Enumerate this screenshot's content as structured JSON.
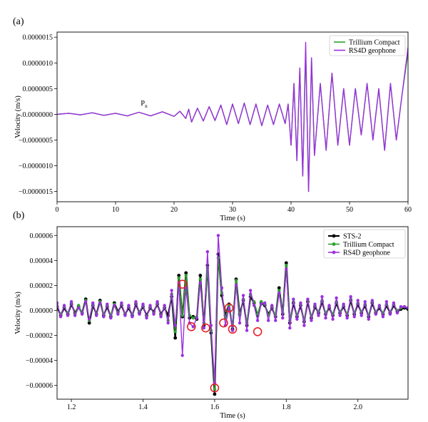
{
  "chart_data": [
    {
      "type": "line",
      "panel_label": "(a)",
      "xlabel": "Time (s)",
      "ylabel": "Velocity (m/s)",
      "xlim": [
        0,
        60
      ],
      "ylim": [
        -1.7e-06,
        1.6e-06
      ],
      "xticks": [
        0,
        10,
        20,
        30,
        40,
        50,
        60
      ],
      "xtick_labels": [
        "0",
        "10",
        "20",
        "30",
        "40",
        "50",
        "60"
      ],
      "yticks": [
        1.5e-06,
        1e-06,
        5e-07,
        0.0,
        -5e-07,
        -1e-06,
        -1.5e-06
      ],
      "ytick_labels": [
        "0.0000015",
        "0.0000010",
        "0.0000005",
        "0.0000000",
        "−0.0000005",
        "−0.0000010",
        "−0.0000015"
      ],
      "annotation": {
        "text": "P",
        "subscript": "n",
        "x": 14.3,
        "y": 9e-08
      },
      "legend": {
        "placement": "top-right",
        "entries": [
          "Trillium Compact",
          "RS4D geophone"
        ]
      },
      "series": [
        {
          "name": "Trillium Compact",
          "color": "#2ca02c",
          "x": [
            0,
            2,
            4,
            6,
            8,
            10,
            12,
            14,
            16,
            18,
            20,
            21,
            22,
            22.5,
            23,
            24,
            25,
            26,
            27,
            28,
            29,
            30,
            31,
            32,
            33,
            34,
            35,
            36,
            37,
            38,
            39,
            39.5,
            40,
            40.5,
            41,
            41.5,
            42,
            42.5,
            43,
            43.5,
            44,
            45,
            46,
            47,
            48,
            49,
            50,
            51,
            52,
            53,
            54,
            55,
            56,
            57,
            58,
            59,
            60
          ],
          "y": [
            0,
            2e-08,
            -1e-08,
            3e-08,
            -2e-08,
            2e-08,
            -3e-08,
            4e-08,
            -3e-08,
            5e-08,
            -4e-08,
            6e-08,
            -8e-08,
            1e-07,
            -1.5e-07,
            1.2e-07,
            -1.3e-07,
            1.5e-07,
            -1.2e-07,
            1.8e-07,
            -2e-07,
            2e-07,
            -1.8e-07,
            2.2e-07,
            -2e-07,
            2e-07,
            -2.2e-07,
            1.8e-07,
            -2e-07,
            2e-07,
            -1.8e-07,
            2e-07,
            -6e-07,
            6e-07,
            -9e-07,
            9e-07,
            -1.2e-06,
            1.2e-06,
            -1.5e-06,
            1.1e-06,
            -8e-07,
            6e-07,
            -7e-07,
            8e-07,
            -6e-07,
            5e-07,
            -6e-07,
            5e-07,
            -4e-07,
            6e-07,
            -5e-07,
            5e-07,
            -7e-07,
            6e-07,
            -5e-07,
            4e-07,
            1.2e-06
          ]
        },
        {
          "name": "RS4D geophone",
          "color": "#9b30e0",
          "x": [
            0,
            2,
            4,
            6,
            8,
            10,
            12,
            14,
            16,
            18,
            20,
            21,
            22,
            22.5,
            23,
            24,
            25,
            26,
            27,
            28,
            29,
            30,
            31,
            32,
            33,
            34,
            35,
            36,
            37,
            38,
            39,
            39.5,
            40,
            40.5,
            41,
            41.5,
            42,
            42.5,
            43,
            43.5,
            44,
            45,
            46,
            47,
            48,
            49,
            50,
            51,
            52,
            53,
            54,
            55,
            56,
            57,
            58,
            59,
            60
          ],
          "y": [
            0,
            2e-08,
            -1e-08,
            3e-08,
            -2e-08,
            2e-08,
            -3e-08,
            4e-08,
            -3e-08,
            5e-08,
            -4e-08,
            6e-08,
            -8e-08,
            1e-07,
            -1.5e-07,
            1.2e-07,
            -1.3e-07,
            1.5e-07,
            -1.2e-07,
            1.8e-07,
            -2e-07,
            2e-07,
            -1.8e-07,
            2.2e-07,
            -2e-07,
            2e-07,
            -2.2e-07,
            1.8e-07,
            -2e-07,
            2e-07,
            -1.8e-07,
            2e-07,
            -6e-07,
            6e-07,
            -9e-07,
            9e-07,
            -1.2e-06,
            1.4e-06,
            -1.5e-06,
            1.1e-06,
            -8e-07,
            6e-07,
            -7e-07,
            8e-07,
            -6e-07,
            5e-07,
            -6e-07,
            5e-07,
            -4e-07,
            6e-07,
            -5e-07,
            5e-07,
            -7e-07,
            6e-07,
            -5e-07,
            4e-07,
            1.3e-06
          ]
        }
      ]
    },
    {
      "type": "line",
      "panel_label": "(b)",
      "xlabel": "Time (s)",
      "ylabel": "Velocity (m/s)",
      "xlim": [
        1.16,
        2.14
      ],
      "ylim": [
        -7.1e-05,
        6.7e-05
      ],
      "xticks": [
        1.2,
        1.4,
        1.6,
        1.8,
        2.0
      ],
      "xtick_labels": [
        "1.2",
        "1.4",
        "1.6",
        "1.8",
        "2.0"
      ],
      "yticks": [
        6e-05,
        4e-05,
        2e-05,
        0.0,
        -2e-05,
        -4e-05,
        -6e-05
      ],
      "ytick_labels": [
        "0.00006",
        "0.00004",
        "0.00002",
        "0.00000",
        "−0.00002",
        "−0.00004",
        "−0.00006"
      ],
      "legend": {
        "placement": "top-right",
        "entries": [
          "STS-2",
          "Trillium Compact",
          "RS4D geophone"
        ]
      },
      "highlighted_points": [
        {
          "x": 1.51,
          "y": 2.1e-05
        },
        {
          "x": 1.535,
          "y": -1.3e-05
        },
        {
          "x": 1.575,
          "y": -1.4e-05
        },
        {
          "x": 1.625,
          "y": -1e-05
        },
        {
          "x": 1.64,
          "y": 2e-06
        },
        {
          "x": 1.65,
          "y": -1.5e-05
        },
        {
          "x": 1.72,
          "y": -1.7e-05
        },
        {
          "x": 1.6,
          "y": -6.2e-05
        }
      ],
      "series": [
        {
          "name": "STS-2",
          "color": "#000000",
          "x": [
            1.16,
            1.17,
            1.18,
            1.19,
            1.2,
            1.21,
            1.22,
            1.23,
            1.24,
            1.25,
            1.26,
            1.27,
            1.28,
            1.29,
            1.3,
            1.31,
            1.32,
            1.33,
            1.34,
            1.35,
            1.36,
            1.37,
            1.38,
            1.39,
            1.4,
            1.41,
            1.42,
            1.43,
            1.44,
            1.45,
            1.46,
            1.47,
            1.48,
            1.49,
            1.5,
            1.51,
            1.52,
            1.53,
            1.54,
            1.55,
            1.56,
            1.57,
            1.58,
            1.59,
            1.6,
            1.61,
            1.62,
            1.63,
            1.64,
            1.65,
            1.66,
            1.67,
            1.68,
            1.69,
            1.7,
            1.71,
            1.72,
            1.73,
            1.74,
            1.75,
            1.76,
            1.77,
            1.78,
            1.79,
            1.8,
            1.81,
            1.82,
            1.83,
            1.84,
            1.85,
            1.86,
            1.87,
            1.88,
            1.89,
            1.9,
            1.91,
            1.92,
            1.93,
            1.94,
            1.95,
            1.96,
            1.97,
            1.98,
            1.99,
            2.0,
            2.01,
            2.02,
            2.03,
            2.04,
            2.05,
            2.06,
            2.07,
            2.08,
            2.09,
            2.1,
            2.11,
            2.12,
            2.13,
            2.14
          ],
          "y": [
            3e-06,
            -4e-06,
            2e-06,
            -3e-06,
            5e-06,
            -2e-06,
            3e-06,
            -2e-06,
            9e-06,
            -1e-05,
            4e-06,
            -3e-06,
            8e-06,
            -4e-06,
            3e-06,
            -5e-06,
            6e-06,
            -1e-06,
            4e-06,
            -3e-06,
            2e-06,
            -4e-06,
            5e-06,
            -2e-06,
            3e-06,
            -4e-06,
            2e-06,
            -1e-06,
            5e-06,
            -3e-06,
            2e-06,
            -4e-06,
            1.1e-05,
            -2.2e-05,
            2.8e-05,
            -5e-06,
            3e-05,
            -6e-06,
            -5e-06,
            -7e-06,
            2.8e-05,
            -1.2e-05,
            3.6e-05,
            -1.8e-05,
            -6.7e-05,
            4.5e-05,
            1.2e-05,
            -4e-06,
            5e-06,
            -1.5e-05,
            2.5e-05,
            -3e-06,
            8e-06,
            -1.2e-05,
            1.1e-05,
            6e-06,
            -4e-06,
            6e-06,
            4e-06,
            -3e-06,
            2e-06,
            -5e-06,
            1.8e-05,
            -3e-06,
            3.8e-05,
            -1e-05,
            6e-06,
            -5e-06,
            4e-06,
            -9e-06,
            7e-06,
            -6e-06,
            3e-06,
            -2e-06,
            7e-06,
            -3e-06,
            2e-06,
            -4e-06,
            6e-06,
            -2e-06,
            3e-06,
            -4e-06,
            8e-06,
            -3e-06,
            5e-06,
            -2e-06,
            4e-06,
            -5e-06,
            6e-06,
            -2e-06,
            2e-06,
            -3e-06,
            4e-06,
            -2e-06,
            4e-06,
            -1e-06,
            1e-06,
            2e-06,
            1e-06
          ]
        },
        {
          "name": "Trillium Compact",
          "color": "#2ca02c",
          "x": [
            1.16,
            1.17,
            1.18,
            1.19,
            1.2,
            1.21,
            1.22,
            1.23,
            1.24,
            1.25,
            1.26,
            1.27,
            1.28,
            1.29,
            1.3,
            1.31,
            1.32,
            1.33,
            1.34,
            1.35,
            1.36,
            1.37,
            1.38,
            1.39,
            1.4,
            1.41,
            1.42,
            1.43,
            1.44,
            1.45,
            1.46,
            1.47,
            1.48,
            1.49,
            1.5,
            1.51,
            1.52,
            1.53,
            1.54,
            1.55,
            1.56,
            1.57,
            1.58,
            1.59,
            1.6,
            1.61,
            1.62,
            1.63,
            1.64,
            1.65,
            1.66,
            1.67,
            1.68,
            1.69,
            1.7,
            1.71,
            1.72,
            1.73,
            1.74,
            1.75,
            1.76,
            1.77,
            1.78,
            1.79,
            1.8,
            1.81,
            1.82,
            1.83,
            1.84,
            1.85,
            1.86,
            1.87,
            1.88,
            1.89,
            1.9,
            1.91,
            1.92,
            1.93,
            1.94,
            1.95,
            1.96,
            1.97,
            1.98,
            1.99,
            2.0,
            2.01,
            2.02,
            2.03,
            2.04,
            2.05,
            2.06,
            2.07,
            2.08,
            2.09,
            2.1,
            2.11,
            2.12,
            2.13,
            2.14
          ],
          "y": [
            4e-06,
            -3e-06,
            3e-06,
            -2e-06,
            6e-06,
            -3e-06,
            4e-06,
            -2e-06,
            8e-06,
            -8e-06,
            5e-06,
            -3e-06,
            7e-06,
            -3e-06,
            4e-06,
            -4e-06,
            5e-06,
            -2e-06,
            5e-06,
            -3e-06,
            3e-06,
            -3e-06,
            6e-06,
            -1e-06,
            4e-06,
            -5e-06,
            3e-06,
            -2e-06,
            6e-06,
            -4e-06,
            3e-06,
            -8e-06,
            1.3e-05,
            -1.7e-05,
            2.6e-05,
            -4e-06,
            2.8e-05,
            -4e-06,
            -6e-06,
            -5e-06,
            2.5e-05,
            -1e-05,
            3.4e-05,
            -1.6e-05,
            -6.3e-05,
            4.2e-05,
            1.4e-05,
            -6e-06,
            4e-06,
            -1.3e-05,
            2.4e-05,
            -4e-06,
            9e-06,
            -1e-05,
            1.3e-05,
            7e-06,
            -3e-06,
            7e-06,
            5e-06,
            -4e-06,
            3e-06,
            -4e-06,
            1.6e-05,
            -2e-06,
            3.6e-05,
            -8e-06,
            7e-06,
            -4e-06,
            5e-06,
            -8e-06,
            8e-06,
            -5e-06,
            4e-06,
            -1e-06,
            8e-06,
            -2e-06,
            3e-06,
            -3e-06,
            7e-06,
            -1e-06,
            4e-06,
            -3e-06,
            9e-06,
            -2e-06,
            6e-06,
            -1e-06,
            5e-06,
            -4e-06,
            7e-06,
            -1e-06,
            3e-06,
            -2e-06,
            5e-06,
            -1e-06,
            5e-06,
            0.0,
            2e-06,
            3e-06,
            2e-06
          ]
        },
        {
          "name": "RS4D geophone",
          "color": "#9b30e0",
          "x": [
            1.16,
            1.17,
            1.18,
            1.19,
            1.2,
            1.21,
            1.22,
            1.23,
            1.24,
            1.25,
            1.26,
            1.27,
            1.28,
            1.29,
            1.3,
            1.31,
            1.32,
            1.33,
            1.34,
            1.35,
            1.36,
            1.37,
            1.38,
            1.39,
            1.4,
            1.41,
            1.42,
            1.43,
            1.44,
            1.45,
            1.46,
            1.47,
            1.48,
            1.49,
            1.5,
            1.51,
            1.52,
            1.53,
            1.54,
            1.55,
            1.56,
            1.57,
            1.58,
            1.59,
            1.6,
            1.61,
            1.62,
            1.63,
            1.64,
            1.65,
            1.66,
            1.67,
            1.68,
            1.69,
            1.7,
            1.71,
            1.72,
            1.73,
            1.74,
            1.75,
            1.76,
            1.77,
            1.78,
            1.79,
            1.8,
            1.81,
            1.82,
            1.83,
            1.84,
            1.85,
            1.86,
            1.87,
            1.88,
            1.89,
            1.9,
            1.91,
            1.92,
            1.93,
            1.94,
            1.95,
            1.96,
            1.97,
            1.98,
            1.99,
            2.0,
            2.01,
            2.02,
            2.03,
            2.04,
            2.05,
            2.06,
            2.07,
            2.08,
            2.09,
            2.1,
            2.11,
            2.12,
            2.13,
            2.14
          ],
          "y": [
            6e-06,
            -5e-06,
            4e-06,
            -4e-06,
            7e-06,
            -4e-06,
            2e-06,
            -3e-06,
            7e-06,
            -7e-06,
            6e-06,
            -4e-06,
            6e-06,
            -5e-06,
            5e-06,
            -6e-06,
            4e-06,
            -3e-06,
            6e-06,
            -4e-06,
            4e-06,
            -5e-06,
            7e-06,
            -3e-06,
            5e-06,
            -6e-06,
            4e-06,
            -3e-06,
            7e-06,
            -5e-06,
            4e-06,
            -1e-05,
            1.6e-05,
            -1.2e-05,
            2.2e-05,
            -3.6e-05,
            1.8e-05,
            -1e-05,
            -1.3e-05,
            -6e-06,
            2.2e-05,
            -1.4e-05,
            4.7e-05,
            -1.2e-05,
            -5.8e-05,
            6e-05,
            1.8e-05,
            -1.2e-05,
            2e-06,
            -1.6e-05,
            2e-05,
            -1e-05,
            1.2e-05,
            -1.6e-05,
            1.6e-05,
            4e-06,
            -8e-06,
            5e-06,
            6e-06,
            -8e-06,
            4e-06,
            -8e-06,
            1.4e-05,
            -6e-06,
            3.3e-05,
            -1.4e-05,
            9e-06,
            -7e-06,
            6e-06,
            -1.2e-05,
            9e-06,
            -8e-06,
            5e-06,
            -4e-06,
            1.1e-05,
            -6e-06,
            4e-06,
            -7e-06,
            1e-05,
            -4e-06,
            5e-06,
            -6e-06,
            1.1e-05,
            -5e-06,
            8e-06,
            -4e-06,
            7e-06,
            -7e-06,
            8e-06,
            -3e-06,
            4e-06,
            -5e-06,
            7e-06,
            -3e-06,
            6e-06,
            -2e-06,
            3e-06,
            3e-06,
            2e-06
          ]
        }
      ]
    }
  ]
}
